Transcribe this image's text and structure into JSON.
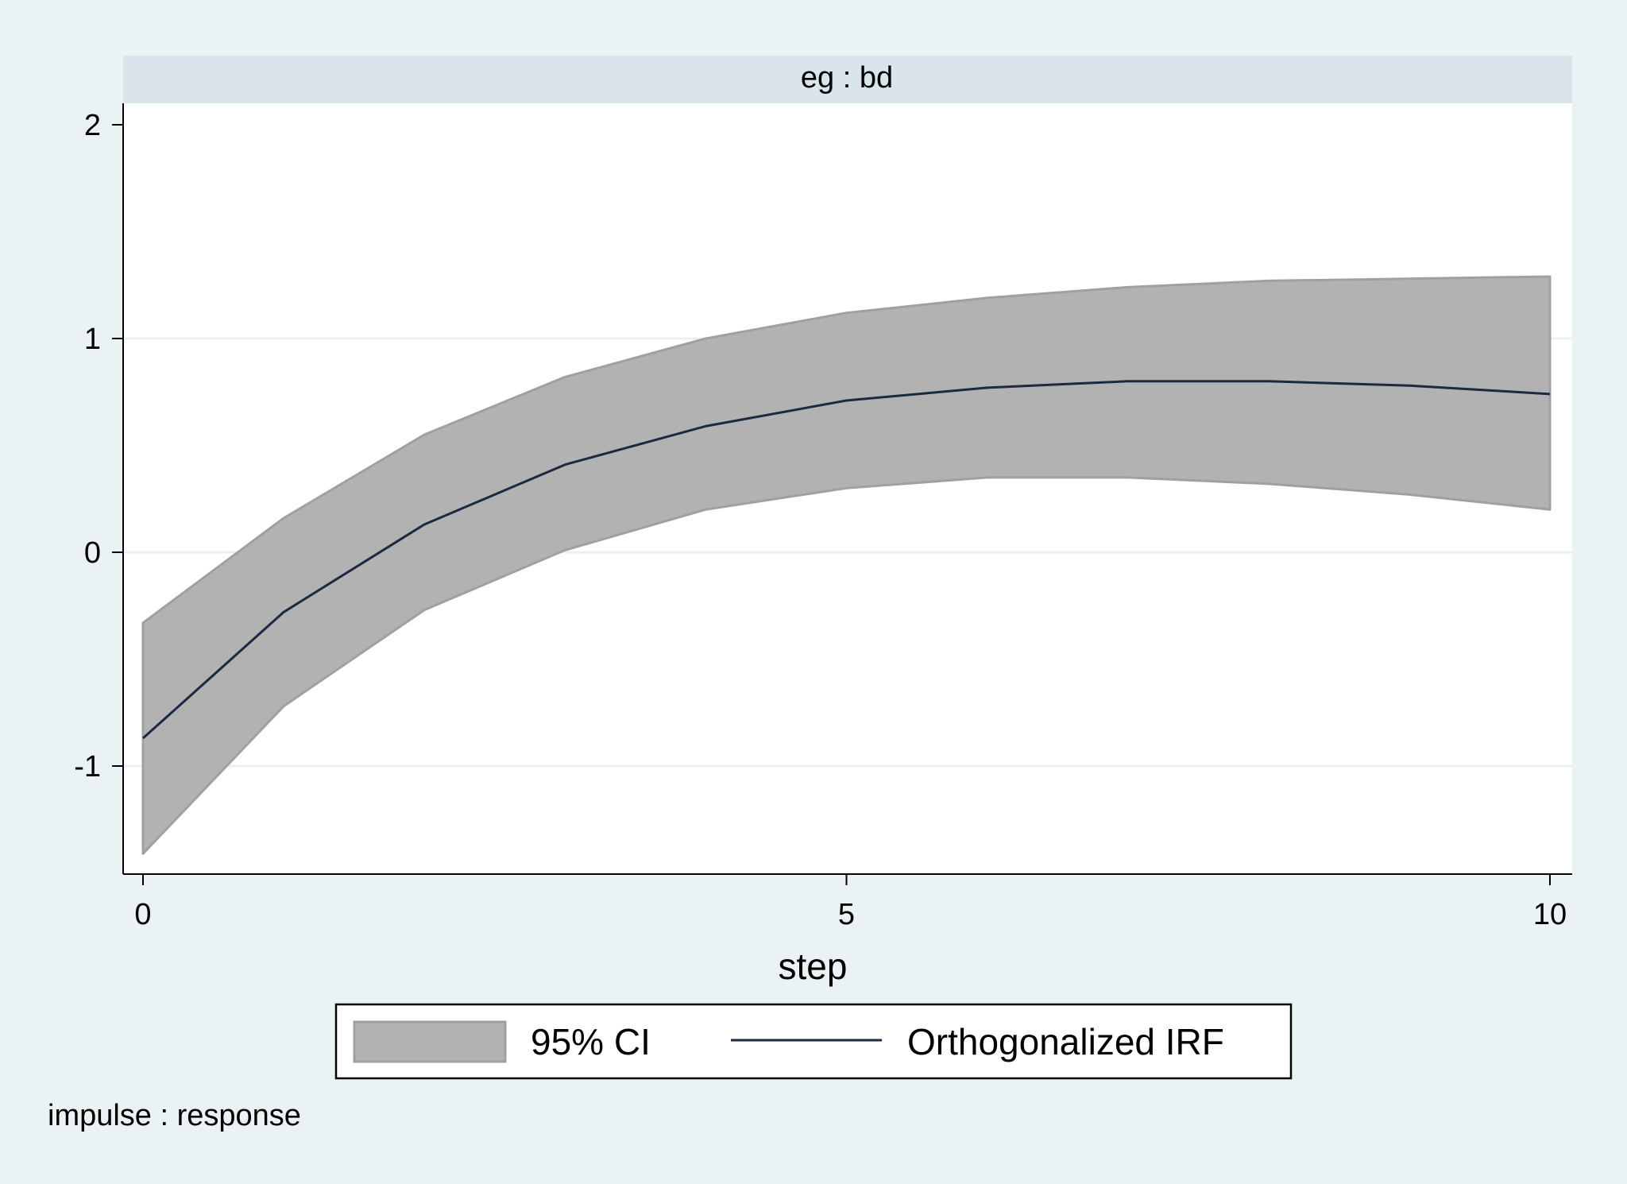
{
  "chart_data": {
    "type": "line",
    "panel_title": "eg : bd",
    "xlabel": "step",
    "ylabel": "",
    "xlim": [
      0,
      10
    ],
    "ylim": [
      -1.5,
      2.1
    ],
    "x_ticks": [
      0,
      5,
      10
    ],
    "y_ticks": [
      -1,
      0,
      1,
      2
    ],
    "grid": true,
    "legend": {
      "position": "bottom-center",
      "entries": [
        "95% CI",
        "Orthogonalized IRF"
      ]
    },
    "note": "impulse : response",
    "x": [
      0,
      1,
      2,
      3,
      4,
      5,
      6,
      7,
      8,
      9,
      10
    ],
    "series": [
      {
        "name": "Orthogonalized IRF",
        "values": [
          -0.87,
          -0.28,
          0.13,
          0.41,
          0.59,
          0.71,
          0.77,
          0.8,
          0.8,
          0.78,
          0.74
        ]
      }
    ],
    "ci": {
      "name": "95% CI",
      "lower": [
        -1.41,
        -0.72,
        -0.27,
        0.01,
        0.2,
        0.3,
        0.35,
        0.35,
        0.32,
        0.27,
        0.2
      ],
      "upper": [
        -0.33,
        0.16,
        0.55,
        0.82,
        1.0,
        1.12,
        1.19,
        1.24,
        1.27,
        1.28,
        1.29
      ]
    },
    "colors": {
      "background": "#eaf2f3",
      "plot_area": "#ffffff",
      "title_bar": "#d9e5ea",
      "ci_fill": "#b2b2b2",
      "ci_edge": "#a0a0a0",
      "line": "#1b2a41",
      "grid": "#e8f0f2"
    }
  }
}
